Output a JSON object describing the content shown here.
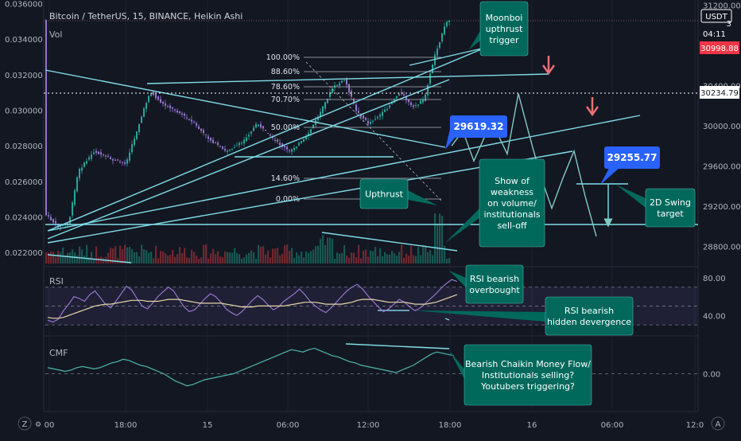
{
  "chart_data": {
    "type": "candlestick",
    "header": {
      "title": "Bitcoin / TetherUS, 15, BINANCE, Heikin Ashi",
      "volume_label": "Vol",
      "quote_currency": "USDT",
      "countdown": "04:11",
      "current_price": "30998.88",
      "crosshair_price": "30234.79",
      "cut_off_price_tag": "3"
    },
    "left_axis": {
      "ticks": [
        "0.036000",
        "0.034000",
        "0.032000",
        "0.030000",
        "0.028000",
        "0.026000",
        "0.024000",
        "0.022000"
      ],
      "range": [
        0.0212,
        0.0362
      ]
    },
    "right_axis": {
      "ticks": [
        "31200.00",
        "30400.00",
        "30000.00",
        "29600.00",
        "29200.00",
        "28800.00"
      ],
      "range": [
        28600,
        31250
      ]
    },
    "x_axis": {
      "ticks": [
        "00",
        "18:00",
        "15",
        "06:00",
        "12:00",
        "18:00",
        "16",
        "06:00",
        "12:0"
      ]
    },
    "fibonacci": [
      {
        "level": "100.00%",
        "color": "#ffffff"
      },
      {
        "level": "88.60%",
        "color": "#ef9a9a"
      },
      {
        "level": "78.60%",
        "color": "#ffffff"
      },
      {
        "level": "70.70%",
        "color": "#ffffff"
      },
      {
        "level": "50.00%",
        "color": "#ffffff"
      },
      {
        "level": "14.60%",
        "color": "#ffffff"
      },
      {
        "level": "0.00%",
        "color": "#ffffff"
      }
    ],
    "price_labels": [
      {
        "text": "29619.32",
        "color": "#2962ff"
      },
      {
        "text": "29255.77",
        "color": "#2962ff"
      }
    ],
    "annotations": [
      {
        "id": "moonboi",
        "lines": [
          "Moonboi",
          "upthrust",
          "trigger"
        ]
      },
      {
        "id": "upthrust",
        "lines": [
          "Upthrust"
        ]
      },
      {
        "id": "weakness",
        "lines": [
          "Show of",
          "weakness",
          "on volume/",
          "institutionals",
          "sell-off"
        ]
      },
      {
        "id": "swing",
        "lines": [
          "2D Swing",
          "target"
        ]
      },
      {
        "id": "rsi-ob",
        "lines": [
          "RSI bearish",
          "overbought"
        ]
      },
      {
        "id": "rsi-div",
        "lines": [
          "RSI bearish",
          "hidden devergence"
        ]
      },
      {
        "id": "cmf",
        "lines": [
          "Bearish Chaikin Money Flow/",
          "Institutionals selling?",
          "Youtubers triggering?"
        ]
      }
    ],
    "rsi": {
      "label": "RSI",
      "ticks": [
        "80.00",
        "40.00"
      ],
      "range": [
        20,
        90
      ],
      "band": [
        30,
        70
      ],
      "values": [
        35,
        33,
        36,
        45,
        52,
        60,
        58,
        55,
        62,
        66,
        59,
        52,
        48,
        55,
        63,
        71,
        67,
        58,
        50,
        47,
        53,
        60,
        65,
        70,
        66,
        57,
        49,
        44,
        46,
        52,
        58,
        63,
        60,
        54,
        47,
        43,
        40,
        44,
        50,
        56,
        61,
        57,
        51,
        46,
        49,
        55,
        59,
        63,
        68,
        62,
        55,
        50,
        46,
        43,
        48,
        54,
        60,
        66,
        70,
        73,
        68,
        61,
        55,
        49,
        44,
        47,
        52,
        57,
        54,
        49,
        45,
        48,
        53,
        58,
        63,
        69,
        74,
        78,
        76
      ],
      "ma": [
        38,
        37,
        37,
        38,
        40,
        42,
        44,
        46,
        48,
        50,
        51,
        52,
        52,
        53,
        54,
        55,
        56,
        56,
        56,
        55,
        55,
        55,
        56,
        57,
        57,
        57,
        56,
        55,
        54,
        53,
        53,
        53,
        53,
        53,
        52,
        51,
        50,
        49,
        49,
        49,
        50,
        50,
        50,
        50,
        50,
        50,
        51,
        52,
        53,
        54,
        54,
        54,
        53,
        52,
        52,
        52,
        52,
        53,
        54,
        56,
        57,
        57,
        57,
        56,
        55,
        54,
        54,
        54,
        54,
        53,
        52,
        52,
        52,
        53,
        54,
        56,
        58,
        60,
        62
      ]
    },
    "cmf": {
      "label": "CMF",
      "ticks": [
        "0.00"
      ],
      "range": [
        -0.3,
        0.3
      ],
      "values": [
        0.05,
        0.04,
        0.03,
        0.02,
        0.03,
        0.05,
        0.06,
        0.05,
        0.04,
        0.05,
        0.07,
        0.09,
        0.1,
        0.12,
        0.11,
        0.09,
        0.07,
        0.06,
        0.04,
        0.02,
        0.0,
        -0.03,
        -0.06,
        -0.08,
        -0.1,
        -0.09,
        -0.07,
        -0.05,
        -0.04,
        -0.03,
        -0.02,
        -0.01,
        0.0,
        0.02,
        0.04,
        0.06,
        0.08,
        0.1,
        0.12,
        0.14,
        0.16,
        0.18,
        0.2,
        0.19,
        0.18,
        0.2,
        0.21,
        0.19,
        0.17,
        0.15,
        0.14,
        0.12,
        0.1,
        0.09,
        0.07,
        0.06,
        0.05,
        0.04,
        0.03,
        0.02,
        0.01,
        0.03,
        0.05,
        0.07,
        0.1,
        0.13,
        0.16,
        0.18,
        0.17,
        0.16,
        0.15
      ]
    },
    "projection": [
      29800,
      29950,
      29650,
      29900,
      29950,
      29720,
      30320,
      29900,
      29500,
      29180,
      29480,
      29750,
      29300,
      28900
    ]
  }
}
